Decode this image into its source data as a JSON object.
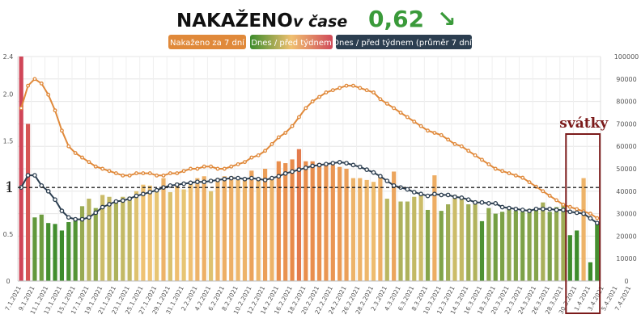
{
  "header": {
    "title": "NAKAŽENO",
    "subtitle": "v čase",
    "value": "0,62",
    "trend_arrow": "↘"
  },
  "legend": [
    {
      "label": "Nakaženo za 7 dní",
      "color": "#e0893a"
    },
    {
      "label": "Dnes / před týdnem",
      "color": "gradient"
    },
    {
      "label": "Dnes / před týdnem (průměr 7 dní)",
      "color": "#2c3e50"
    }
  ],
  "annotation": {
    "label": "svátky",
    "color": "#7b1a1a"
  },
  "reference_line": {
    "label": "1",
    "value": 1
  },
  "chart_data": {
    "type": "bar",
    "left_axis": {
      "min": 0,
      "max": 2.4,
      "ticks": [
        "0",
        "0.5",
        "1",
        "1.5",
        "2.0",
        "2.4"
      ],
      "tick_values": [
        0,
        0.5,
        1,
        1.5,
        2.0,
        2.4
      ]
    },
    "right_axis": {
      "min": 0,
      "max": 100000,
      "ticks": [
        "0",
        "10000",
        "20000",
        "30000",
        "40000",
        "50000",
        "60000",
        "70000",
        "80000",
        "90000",
        "100000"
      ]
    },
    "x_labels": [
      "7.1.2021",
      "9.1.2021",
      "11.1.2021",
      "13.1.2021",
      "15.1.2021",
      "17.1.2021",
      "19.1.2021",
      "21.1.2021",
      "23.1.2021",
      "25.1.2021",
      "27.1.2021",
      "29.1.2021",
      "31.1.2021",
      "2.2.2021",
      "4.2.2021",
      "6.2.2021",
      "8.2.2021",
      "10.2.2021",
      "12.2.2021",
      "14.2.2021",
      "16.2.2021",
      "18.2.2021",
      "20.2.2021",
      "22.2.2021",
      "24.2.2021",
      "26.2.2021",
      "28.2.2021",
      "2.3.2021",
      "4.3.2021",
      "6.3.2021",
      "8.3.2021",
      "10.3.2021",
      "12.3.2021",
      "14.3.2021",
      "16.3.2021",
      "18.3.2021",
      "20.3.2021",
      "22.3.2021",
      "24.3.2021",
      "26.3.2021",
      "28.3.2021",
      "30.3.2021",
      "1.4.2021",
      "3.4.2021",
      "5.4.2021",
      "7.4.2021"
    ],
    "ratio": [
      2.4,
      1.68,
      0.68,
      0.71,
      0.62,
      0.61,
      0.54,
      0.63,
      0.65,
      0.8,
      0.88,
      0.78,
      0.92,
      0.9,
      0.85,
      0.9,
      0.9,
      0.96,
      1.03,
      1.02,
      0.98,
      1.1,
      0.95,
      1.05,
      0.98,
      1.04,
      1.1,
      1.12,
      0.96,
      1.1,
      1.12,
      1.12,
      1.08,
      1.1,
      1.18,
      1.08,
      1.2,
      1.1,
      1.28,
      1.26,
      1.3,
      1.41,
      1.28,
      1.28,
      1.26,
      1.24,
      1.24,
      1.22,
      1.2,
      1.1,
      1.1,
      1.08,
      1.06,
      1.12,
      0.88,
      1.17,
      0.85,
      0.85,
      0.9,
      0.92,
      0.76,
      1.13,
      0.75,
      0.82,
      0.92,
      0.9,
      0.82,
      0.86,
      0.64,
      0.78,
      0.72,
      0.74,
      0.79,
      0.75,
      0.74,
      0.77,
      0.76,
      0.84,
      0.74,
      0.79,
      0.82,
      0.49,
      0.54,
      1.1,
      0.2,
      0.62
    ],
    "ratio_avg7": [
      1.0,
      1.13,
      1.13,
      1.02,
      0.96,
      0.87,
      0.75,
      0.68,
      0.66,
      0.66,
      0.68,
      0.73,
      0.79,
      0.82,
      0.85,
      0.86,
      0.88,
      0.91,
      0.93,
      0.95,
      0.97,
      1.0,
      1.02,
      1.03,
      1.04,
      1.05,
      1.06,
      1.06,
      1.07,
      1.08,
      1.09,
      1.1,
      1.1,
      1.09,
      1.1,
      1.09,
      1.08,
      1.1,
      1.12,
      1.15,
      1.17,
      1.19,
      1.21,
      1.23,
      1.24,
      1.25,
      1.26,
      1.27,
      1.26,
      1.24,
      1.22,
      1.19,
      1.16,
      1.12,
      1.07,
      1.02,
      1.0,
      0.98,
      0.95,
      0.93,
      0.91,
      0.93,
      0.92,
      0.92,
      0.9,
      0.89,
      0.87,
      0.84,
      0.84,
      0.83,
      0.83,
      0.79,
      0.78,
      0.77,
      0.76,
      0.75,
      0.77,
      0.77,
      0.77,
      0.76,
      0.76,
      0.74,
      0.73,
      0.72,
      0.67,
      0.62
    ],
    "infected_7d": [
      77000,
      87000,
      90000,
      88000,
      83000,
      76000,
      67000,
      60000,
      57000,
      55000,
      53000,
      51000,
      50000,
      49000,
      48000,
      47000,
      47000,
      48000,
      48000,
      48000,
      47000,
      47000,
      48000,
      48000,
      49000,
      50000,
      50000,
      51000,
      51000,
      50000,
      50000,
      51000,
      52000,
      53000,
      55000,
      56000,
      58000,
      61000,
      64000,
      66000,
      69000,
      73000,
      77000,
      80000,
      82000,
      84000,
      85000,
      86000,
      87000,
      87000,
      86000,
      85000,
      84000,
      81000,
      79000,
      77000,
      75000,
      73000,
      71000,
      69000,
      67000,
      66000,
      65000,
      63000,
      61000,
      60000,
      58000,
      56000,
      54000,
      52000,
      50000,
      49000,
      48000,
      47000,
      46000,
      44000,
      42000,
      40000,
      38000,
      36000,
      34000,
      33000,
      32000,
      31000,
      30000,
      28000
    ]
  }
}
